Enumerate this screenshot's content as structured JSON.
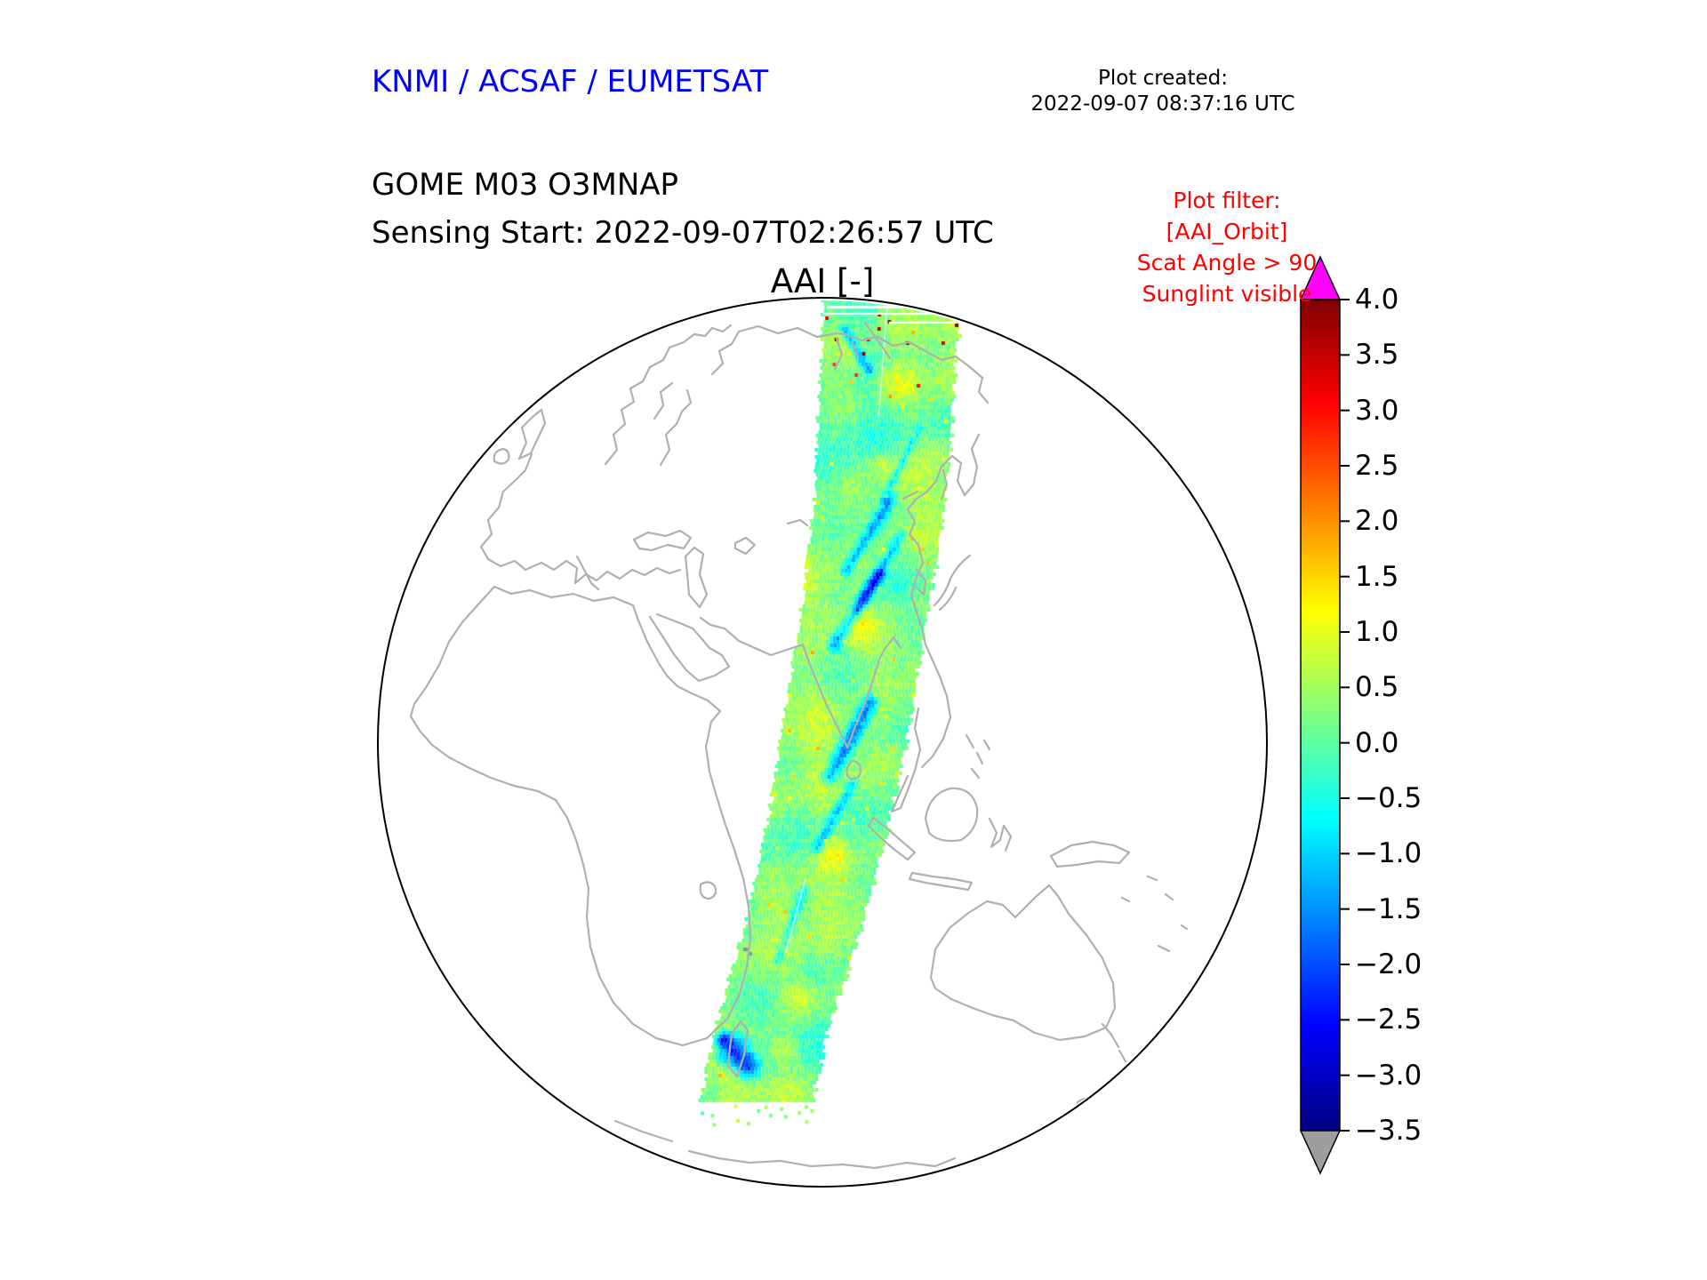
{
  "header": {
    "agency_title": "KNMI / ACSAF / EUMETSAT",
    "plot_created_label": "Plot created:",
    "plot_created_value": "2022-09-07 08:37:16 UTC",
    "product_title": "GOME M03 O3MNAP",
    "sensing_start": "Sensing Start: 2022-09-07T02:26:57 UTC",
    "map_title": "AAI [-]",
    "filter": {
      "color": "#ff0000",
      "lines": [
        "Plot filter:",
        "[AAI_Orbit]",
        "Scat Angle > 90",
        "Sunglint visible"
      ]
    }
  },
  "chart_data": {
    "type": "heatmap",
    "title": "AAI [-]",
    "projection": "orthographic globe centered over Asia / Indian Ocean",
    "platform": "GOME Metop-3 (M03) O3MNAP",
    "sensing_start": "2022-09-07T02:26:57 UTC",
    "plot_created": "2022-09-07 08:37:16 UTC",
    "annotations": [
      "Plot filter:",
      "[AAI_Orbit]",
      "Scat Angle > 90",
      "Sunglint visible"
    ],
    "colorbar": {
      "label": "AAI [-]",
      "ticks": [
        "4.0",
        "3.5",
        "3.0",
        "2.5",
        "2.0",
        "1.5",
        "1.0",
        "0.5",
        "0.0",
        "−0.5",
        "−1.0",
        "−1.5",
        "−2.0",
        "−2.5",
        "−3.0",
        "−3.5"
      ],
      "range": [
        -3.5,
        4.0
      ],
      "colormap": "jet",
      "over_color": "#ff00ff",
      "under_color": "#9e9e9e"
    },
    "swath": {
      "description": "Single descending orbit swath from the north-polar region curving south-southwest to southern Africa; AAI values mostly between -1.5 and 1.5 (cyan/green/yellow), diagonal blue streaks mid-swath, dark-blue cluster at the southern end, scattered red specks near the northern end, thin white data-gap lines at swath top",
      "value_range_typical": [
        -1.5,
        1.5
      ],
      "coastline_color": "#b0b0b0"
    }
  }
}
